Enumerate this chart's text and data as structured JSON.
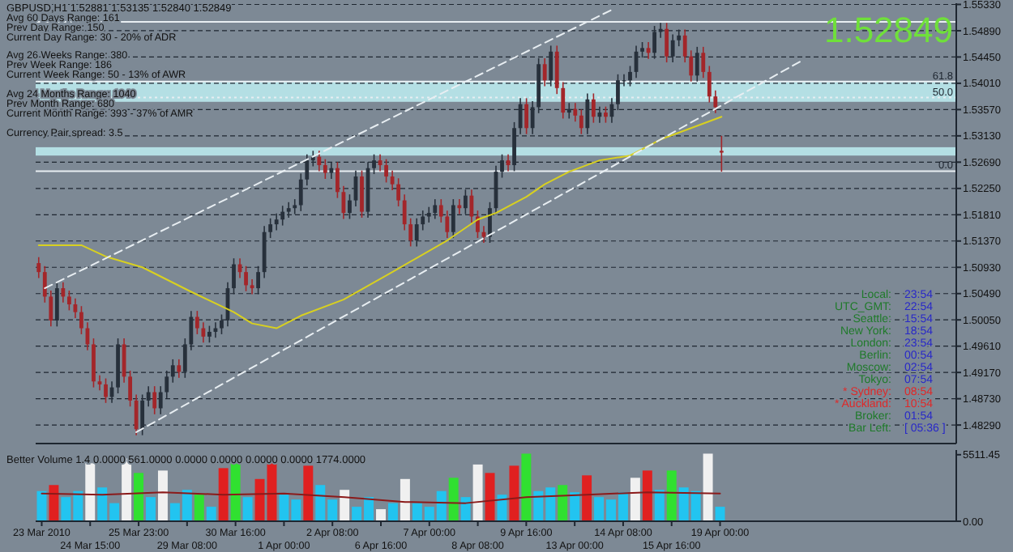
{
  "chart_data": [
    {
      "type": "candlestick",
      "title": "GBPUSD,H1  1.52881  1.53135  1.52840  1.52849",
      "categories": [
        null,
        null,
        null,
        null,
        null,
        null,
        null,
        null,
        null,
        null,
        null,
        null,
        null,
        null,
        null,
        null,
        null,
        null,
        null,
        null,
        null,
        null,
        null,
        null,
        null,
        null,
        null,
        null,
        null,
        null,
        null,
        null,
        null,
        null,
        null,
        null,
        null,
        null,
        null,
        null,
        null,
        null,
        null,
        null,
        null,
        null,
        null,
        null,
        null,
        null,
        null,
        null,
        null,
        null,
        null,
        null,
        null,
        null,
        null,
        null,
        null,
        null,
        null,
        null,
        null,
        null,
        null,
        null,
        null,
        null,
        null,
        null,
        null,
        null,
        null,
        null,
        null,
        null,
        null,
        null,
        null,
        null,
        null,
        null,
        null,
        null,
        null,
        null,
        null,
        null,
        null,
        null,
        null,
        null,
        null,
        null,
        null,
        null,
        null,
        null,
        null,
        null,
        null,
        null,
        null,
        null,
        null,
        null,
        null,
        null,
        null,
        null,
        null,
        null,
        null,
        null,
        null,
        null,
        null,
        null,
        null,
        null,
        null,
        null,
        null,
        null,
        null,
        null,
        null,
        null,
        null,
        null,
        null,
        null,
        null,
        null,
        null,
        null,
        null,
        null,
        null,
        null,
        null,
        null,
        null,
        null,
        null,
        null,
        null,
        null,
        null
      ],
      "ohlc": [
        [
          1.51,
          1.511,
          1.5075,
          1.5085
        ],
        [
          1.5085,
          1.5095,
          1.5034,
          1.5044
        ],
        [
          1.5044,
          1.5054,
          1.4994,
          1.5004
        ],
        [
          1.5004,
          1.5068,
          1.4994,
          1.5058
        ],
        [
          1.5058,
          1.5068,
          1.5034,
          1.5044
        ],
        [
          1.5044,
          1.5054,
          1.5021,
          1.5031
        ],
        [
          1.5031,
          1.5041,
          1.5008,
          1.5018
        ],
        [
          1.5018,
          1.5028,
          1.4981,
          1.4991
        ],
        [
          1.4991,
          1.5001,
          1.4954,
          1.4964
        ],
        [
          1.4964,
          1.4974,
          1.4892,
          1.4902
        ],
        [
          1.4902,
          1.4912,
          1.4887,
          1.4897
        ],
        [
          1.4897,
          1.4907,
          1.4866,
          1.4876
        ],
        [
          1.4876,
          1.4902,
          1.4866,
          1.4892
        ],
        [
          1.4892,
          1.4974,
          1.4882,
          1.4964
        ],
        [
          1.4964,
          1.4974,
          1.49,
          1.491
        ],
        [
          1.491,
          1.492,
          1.486,
          1.487
        ],
        [
          1.487,
          1.488,
          1.4812,
          1.4822
        ],
        [
          1.4822,
          1.488,
          1.4812,
          1.487
        ],
        [
          1.487,
          1.4894,
          1.486,
          1.4884
        ],
        [
          1.4884,
          1.4894,
          1.4847,
          1.4857
        ],
        [
          1.4857,
          1.4894,
          1.4847,
          1.4884
        ],
        [
          1.4884,
          1.492,
          1.4874,
          1.491
        ],
        [
          1.491,
          1.4939,
          1.49,
          1.4929
        ],
        [
          1.4929,
          1.4939,
          1.4908,
          1.4918
        ],
        [
          1.4918,
          1.4974,
          1.4908,
          1.4964
        ],
        [
          1.4964,
          1.502,
          1.4954,
          1.501
        ],
        [
          1.501,
          1.502,
          1.4981,
          1.4991
        ],
        [
          1.4991,
          1.5001,
          1.4967,
          1.4977
        ],
        [
          1.4977,
          1.4995,
          1.4967,
          1.4985
        ],
        [
          1.4985,
          1.5001,
          1.4975,
          1.4991
        ],
        [
          1.4991,
          1.5014,
          1.4981,
          1.5004
        ],
        [
          1.5004,
          1.5068,
          1.4994,
          1.5058
        ],
        [
          1.5058,
          1.5108,
          1.5048,
          1.5098
        ],
        [
          1.5098,
          1.5108,
          1.5075,
          1.5085
        ],
        [
          1.5085,
          1.5095,
          1.5053,
          1.5063
        ],
        [
          1.5063,
          1.5073,
          1.5048,
          1.5058
        ],
        [
          1.5058,
          1.5095,
          1.5048,
          1.5085
        ],
        [
          1.5085,
          1.5162,
          1.5075,
          1.5152
        ],
        [
          1.5152,
          1.5175,
          1.5142,
          1.5165
        ],
        [
          1.5165,
          1.5183,
          1.5155,
          1.5173
        ],
        [
          1.5173,
          1.5196,
          1.5163,
          1.5186
        ],
        [
          1.5186,
          1.5202,
          1.5176,
          1.5192
        ],
        [
          1.5192,
          1.5207,
          1.5182,
          1.5197
        ],
        [
          1.5197,
          1.525,
          1.5187,
          1.524
        ],
        [
          1.524,
          1.5282,
          1.523,
          1.5272
        ],
        [
          1.5272,
          1.5288,
          1.5262,
          1.5278
        ],
        [
          1.5278,
          1.5288,
          1.5254,
          1.5264
        ],
        [
          1.5264,
          1.5274,
          1.5241,
          1.5251
        ],
        [
          1.5251,
          1.5269,
          1.5241,
          1.5259
        ],
        [
          1.5259,
          1.5269,
          1.5209,
          1.5219
        ],
        [
          1.5219,
          1.5229,
          1.5174,
          1.5184
        ],
        [
          1.5184,
          1.5215,
          1.5174,
          1.5205
        ],
        [
          1.5205,
          1.5255,
          1.5195,
          1.5245
        ],
        [
          1.5245,
          1.5255,
          1.5176,
          1.5186
        ],
        [
          1.5186,
          1.5269,
          1.5176,
          1.5259
        ],
        [
          1.5259,
          1.5282,
          1.5249,
          1.5272
        ],
        [
          1.5272,
          1.5282,
          1.5254,
          1.5264
        ],
        [
          1.5264,
          1.5274,
          1.5235,
          1.5245
        ],
        [
          1.5245,
          1.5255,
          1.5222,
          1.5232
        ],
        [
          1.5232,
          1.5242,
          1.5195,
          1.5205
        ],
        [
          1.5205,
          1.5215,
          1.5155,
          1.5165
        ],
        [
          1.5165,
          1.5175,
          1.5128,
          1.5138
        ],
        [
          1.5138,
          1.5175,
          1.5128,
          1.5165
        ],
        [
          1.5165,
          1.5188,
          1.5155,
          1.5178
        ],
        [
          1.5178,
          1.5194,
          1.5168,
          1.5184
        ],
        [
          1.5184,
          1.5207,
          1.5174,
          1.5197
        ],
        [
          1.5197,
          1.5207,
          1.5168,
          1.5178
        ],
        [
          1.5178,
          1.5188,
          1.5142,
          1.5152
        ],
        [
          1.5152,
          1.5207,
          1.5142,
          1.5197
        ],
        [
          1.5197,
          1.5207,
          1.5182,
          1.5192
        ],
        [
          1.5192,
          1.5223,
          1.5182,
          1.5213
        ],
        [
          1.5213,
          1.5223,
          1.5168,
          1.5178
        ],
        [
          1.5178,
          1.5188,
          1.5142,
          1.5152
        ],
        [
          1.5152,
          1.5162,
          1.5134,
          1.5144
        ],
        [
          1.5144,
          1.5202,
          1.5134,
          1.5192
        ],
        [
          1.5192,
          1.5263,
          1.5182,
          1.5253
        ],
        [
          1.5253,
          1.5282,
          1.5243,
          1.5272
        ],
        [
          1.5272,
          1.5282,
          1.5254,
          1.5264
        ],
        [
          1.5264,
          1.5336,
          1.5254,
          1.5326
        ],
        [
          1.5326,
          1.5376,
          1.5316,
          1.5366
        ],
        [
          1.5366,
          1.5376,
          1.5316,
          1.5326
        ],
        [
          1.5326,
          1.5371,
          1.5316,
          1.5361
        ],
        [
          1.5361,
          1.5443,
          1.5351,
          1.5433
        ],
        [
          1.5433,
          1.5443,
          1.5396,
          1.5406
        ],
        [
          1.5406,
          1.5464,
          1.5396,
          1.5454
        ],
        [
          1.5454,
          1.5464,
          1.5383,
          1.5393
        ],
        [
          1.5393,
          1.5403,
          1.5342,
          1.5352
        ],
        [
          1.5352,
          1.5368,
          1.5342,
          1.5358
        ],
        [
          1.5358,
          1.5368,
          1.5337,
          1.5347
        ],
        [
          1.5347,
          1.5357,
          1.5316,
          1.5326
        ],
        [
          1.5326,
          1.5384,
          1.5316,
          1.5374
        ],
        [
          1.5374,
          1.5384,
          1.5335,
          1.5345
        ],
        [
          1.5345,
          1.5362,
          1.5335,
          1.5352
        ],
        [
          1.5352,
          1.5362,
          1.5335,
          1.5345
        ],
        [
          1.5345,
          1.5376,
          1.5335,
          1.5366
        ],
        [
          1.5366,
          1.5416,
          1.5356,
          1.5406
        ],
        [
          1.5406,
          1.5416,
          1.5396,
          1.5406
        ],
        [
          1.5406,
          1.543,
          1.5396,
          1.542
        ],
        [
          1.542,
          1.5464,
          1.541,
          1.5454
        ],
        [
          1.5454,
          1.547,
          1.5444,
          1.546
        ],
        [
          1.546,
          1.547,
          1.5442,
          1.5452
        ],
        [
          1.5452,
          1.5497,
          1.5442,
          1.5487
        ],
        [
          1.5487,
          1.5502,
          1.5477,
          1.5492
        ],
        [
          1.5492,
          1.5502,
          1.5436,
          1.5446
        ],
        [
          1.5446,
          1.5483,
          1.5436,
          1.5473
        ],
        [
          1.5473,
          1.5491,
          1.5463,
          1.5481
        ],
        [
          1.5481,
          1.5491,
          1.5436,
          1.5446
        ],
        [
          1.5446,
          1.5456,
          1.5404,
          1.5414
        ],
        [
          1.5414,
          1.5462,
          1.5404,
          1.5452
        ],
        [
          1.5452,
          1.5462,
          1.541,
          1.542
        ],
        [
          1.542,
          1.543,
          1.5369,
          1.5379
        ],
        [
          1.5379,
          1.5389,
          1.5351,
          1.5361
        ],
        [
          1.5288,
          1.5313,
          1.5253,
          1.5285
        ],
        null,
        null,
        null,
        null,
        null,
        null,
        null,
        null,
        null,
        null,
        null,
        null,
        null,
        null,
        null,
        null,
        null,
        null,
        null,
        null,
        null,
        null,
        null,
        null,
        null,
        null,
        null,
        null,
        null,
        null,
        null,
        null,
        null,
        null,
        null,
        null,
        null,
        null
      ],
      "series": [
        {
          "type": "line",
          "color": "#d8d020",
          "values": [
            1.513,
            null,
            null,
            null,
            null,
            null,
            null,
            1.513,
            null,
            null,
            null,
            1.5111,
            null,
            null,
            null,
            null,
            null,
            1.5093,
            null,
            null,
            null,
            null,
            null,
            null,
            null,
            1.5052,
            null,
            null,
            null,
            null,
            null,
            null,
            1.5018,
            null,
            null,
            1.4999,
            null,
            null,
            null,
            1.4991,
            null,
            null,
            null,
            1.5012,
            null,
            null,
            null,
            null,
            null,
            null,
            1.5039,
            null,
            null,
            null,
            null,
            null,
            null,
            null,
            1.5085,
            null,
            null,
            null,
            null,
            null,
            null,
            null,
            null,
            1.5138,
            null,
            null,
            null,
            null,
            1.5173,
            null,
            null,
            1.5184,
            null,
            null,
            null,
            null,
            1.5211,
            null,
            null,
            1.5232,
            null,
            null,
            null,
            1.5253,
            null,
            null,
            null,
            null,
            1.5272,
            null,
            null,
            null,
            null,
            1.528,
            null,
            null,
            null,
            null,
            1.5307,
            null,
            null,
            null,
            null,
            1.5326,
            null,
            null,
            null,
            null,
            1.5345,
            null,
            null,
            null,
            null,
            null,
            null,
            null,
            null,
            null,
            null,
            null,
            null,
            null,
            null,
            null,
            null,
            null,
            null,
            null,
            null,
            null,
            null,
            null,
            null,
            null,
            null,
            null,
            null,
            null,
            null,
            null,
            null,
            null,
            null,
            null,
            null,
            null,
            null
          ]
        },
        {
          "type": "line",
          "color": "#e8eef2",
          "line_style": "dashed",
          "values": [
            null,
            1.5058,
            null,
            null,
            null,
            null,
            null,
            null,
            null,
            null,
            null,
            null,
            null,
            null,
            null,
            null,
            null,
            null,
            null,
            null,
            null,
            null,
            null,
            null,
            null,
            null,
            null,
            null,
            null,
            null,
            null,
            null,
            null,
            null,
            null,
            null,
            null,
            null,
            null,
            null,
            null,
            null,
            null,
            null,
            null,
            null,
            null,
            null,
            null,
            null,
            null,
            null,
            null,
            null,
            null,
            null,
            null,
            null,
            null,
            null,
            null,
            null,
            null,
            null,
            null,
            null,
            null,
            null,
            null,
            null,
            null,
            null,
            null,
            null,
            null,
            null,
            null,
            null,
            null,
            null,
            null,
            null,
            null,
            null,
            null,
            null,
            null,
            null,
            null,
            null,
            null,
            null,
            null,
            null,
            1.5524,
            null,
            null,
            null,
            null,
            null,
            null,
            null,
            null,
            null,
            null,
            null,
            null,
            null,
            null,
            null,
            null,
            null,
            null,
            null,
            null,
            null,
            null,
            null,
            null,
            null,
            null,
            null,
            null,
            null,
            null,
            null,
            null,
            null,
            null,
            null,
            null,
            null,
            null,
            null,
            null,
            null,
            null,
            null,
            null,
            null,
            null,
            null,
            null,
            null,
            null,
            null,
            null,
            null,
            null,
            null,
            null
          ]
        },
        {
          "type": "line",
          "color": "#e8eef2",
          "line_style": "dashed",
          "values": [
            null,
            null,
            null,
            null,
            null,
            null,
            null,
            null,
            null,
            null,
            null,
            null,
            null,
            null,
            null,
            null,
            1.4817,
            null,
            null,
            null,
            null,
            null,
            null,
            null,
            null,
            null,
            null,
            null,
            null,
            null,
            null,
            null,
            null,
            null,
            null,
            null,
            null,
            null,
            null,
            null,
            null,
            null,
            null,
            null,
            null,
            null,
            null,
            null,
            null,
            null,
            null,
            null,
            null,
            null,
            null,
            null,
            null,
            null,
            null,
            null,
            null,
            null,
            null,
            null,
            null,
            null,
            null,
            null,
            null,
            null,
            null,
            null,
            null,
            null,
            null,
            null,
            null,
            null,
            null,
            null,
            null,
            null,
            null,
            null,
            null,
            null,
            null,
            null,
            null,
            null,
            null,
            null,
            null,
            null,
            null,
            null,
            null,
            null,
            null,
            null,
            null,
            null,
            null,
            null,
            null,
            null,
            null,
            null,
            null,
            null,
            null,
            null,
            null,
            null,
            null,
            null,
            null,
            null,
            null,
            null,
            null,
            null,
            null,
            null,
            null,
            1.5438,
            null,
            null,
            null,
            null,
            null,
            null,
            null,
            null,
            null,
            null,
            null,
            null,
            null,
            null,
            null,
            null,
            null,
            null,
            null,
            null,
            null,
            null,
            null,
            null,
            null
          ]
        }
      ],
      "ylim": [
        1.4798,
        1.5535
      ],
      "yticks": [
        {
          "value": 1.4829,
          "label": "1.48290"
        },
        {
          "value": 1.4873,
          "label": "1.48730"
        },
        {
          "value": 1.4917,
          "label": "1.49170"
        },
        {
          "value": 1.4961,
          "label": "1.49610"
        },
        {
          "value": 1.5005,
          "label": "1.50050"
        },
        {
          "value": 1.5049,
          "label": "1.50490"
        },
        {
          "value": 1.5093,
          "label": "1.50930"
        },
        {
          "value": 1.5137,
          "label": "1.51370"
        },
        {
          "value": 1.5181,
          "label": "1.51810"
        },
        {
          "value": 1.5225,
          "label": "1.52250"
        },
        {
          "value": 1.5269,
          "label": "1.52690"
        },
        {
          "value": 1.5313,
          "label": "1.53130"
        },
        {
          "value": 1.5357,
          "label": "1.53570"
        },
        {
          "value": 1.5401,
          "label": "1.54010"
        },
        {
          "value": 1.5445,
          "label": "1.54450"
        },
        {
          "value": 1.5489,
          "label": "1.54890"
        },
        {
          "value": 1.5533,
          "label": "1.55330"
        }
      ],
      "tick_labels": "y",
      "grid": "y",
      "ref_lines": [
        {
          "axis": "y",
          "value": 1.5504,
          "color": "#e8eef2"
        },
        {
          "axis": "y",
          "value": 1.5404,
          "color": "#e8eef2"
        },
        {
          "axis": "y",
          "value": 1.5377,
          "color": "#e8eef2",
          "line_style": "dotted"
        },
        {
          "axis": "y",
          "value": 1.5254,
          "color": "#e8eef2"
        }
      ],
      "bands": [
        {
          "axis": "y",
          "from": 1.528,
          "to": 1.5294,
          "color": "#bdeef2"
        },
        {
          "axis": "y",
          "from": 1.537,
          "to": 1.5404,
          "color": "#bdeef2"
        }
      ],
      "annotations": [
        "Avg 60 Days Range: 161",
        "Prev Day Range: 150",
        "Current Day Range: 30 - 20% of ADR",
        "Avg 26 Weeks Range: 380",
        "Prev Week Range: 186",
        "Current Week Range: 50 - 13% of AWR",
        "Avg 24 Months Range: 1040",
        "Prev Month Range: 680",
        "Current Month Range: 393 - 37% of AMR",
        "Currency Pair spread: 3.5",
        "Local:",
        "23:54",
        "UTC_GMT:",
        "22:54",
        "Seattle:",
        "15:54",
        "New York:",
        "18:54",
        "London:",
        "23:54",
        "Berlin:",
        "00:54",
        "Moscow:",
        "02:54",
        "Tokyo:",
        "07:54",
        "* Sydney:",
        "08:54",
        "* Auckland:",
        "10:54",
        "Broker:",
        "01:54",
        "Bar Left:",
        "[ 05:36 ]",
        "1.52849",
        {
          "text": "61.8",
          "y": 1.5404
        },
        {
          "text": "50.0",
          "y": 1.5377
        },
        {
          "text": "0.0",
          "y": 1.5254
        }
      ]
    },
    {
      "type": "bar",
      "title": "Better Volume 1.4 0.0000 561.0000 0.0000 0.0000 0.0000 0.0000 1774.0000",
      "categories": [
        "23 Mar 2010",
        null,
        null,
        null,
        "24 Mar 15:00",
        null,
        null,
        null,
        "25 Mar 23:00",
        null,
        null,
        null,
        "29 Mar 08:00",
        null,
        null,
        null,
        "30 Mar 16:00",
        null,
        null,
        null,
        "1 Apr 00:00",
        null,
        null,
        null,
        "2 Apr 08:00",
        null,
        null,
        null,
        "6 Apr 16:00",
        null,
        null,
        null,
        "7 Apr 00:00",
        null,
        null,
        null,
        "8 Apr 08:00",
        null,
        null,
        null,
        "9 Apr 16:00",
        null,
        null,
        null,
        "13 Apr 00:00",
        null,
        null,
        null,
        "14 Apr 08:00",
        null,
        null,
        null,
        "15 Apr 16:00",
        null,
        null,
        null,
        "19 Apr 00:00",
        null,
        null,
        null,
        null,
        null,
        null,
        null,
        null,
        null,
        null,
        null,
        null,
        null,
        null,
        null,
        null,
        null,
        null,
        null
      ],
      "values": [
        2500,
        3000,
        2000,
        2500,
        4800,
        2800,
        1500,
        5200,
        4000,
        2000,
        4200,
        1500,
        2600,
        2200,
        1200,
        4400,
        5000,
        2000,
        3500,
        5000,
        2200,
        1800,
        4600,
        3000,
        1800,
        2600,
        1200,
        2000,
        1000,
        1500,
        3500,
        1500,
        1200,
        2500,
        3600,
        2000,
        4700,
        4000,
        2200,
        4600,
        5600,
        2500,
        2800,
        3000,
        2400,
        3800,
        2000,
        1800,
        2400,
        3600,
        4200,
        2600,
        4200,
        2800,
        2500,
        5600,
        1200,
        null,
        null,
        null,
        null,
        null,
        null,
        null,
        null,
        null,
        null,
        null,
        null,
        null,
        null,
        null,
        null,
        null,
        null,
        null
      ],
      "colors": [
        "#22c4f0",
        "#e02020",
        "#22c4f0",
        "#22c4f0",
        "#f0f0f0",
        "#22c4f0",
        "#22c4f0",
        "#f0f0f0",
        "#30e030",
        "#22c4f0",
        "#f0f0f0",
        "#22c4f0",
        "#22c4f0",
        "#30e030",
        "#22c4f0",
        "#e02020",
        "#30e030",
        "#22c4f0",
        "#e02020",
        "#e02020",
        "#22c4f0",
        "#22c4f0",
        "#e02020",
        "#22c4f0",
        "#22c4f0",
        "#f0f0f0",
        "#22c4f0",
        "#22c4f0",
        "#f0f0f0",
        "#22c4f0",
        "#f0f0f0",
        "#22c4f0",
        "#22c4f0",
        "#22c4f0",
        "#30e030",
        "#22c4f0",
        "#f0f0f0",
        "#e02020",
        "#22c4f0",
        "#e02020",
        "#30e030",
        "#22c4f0",
        "#22c4f0",
        "#30e030",
        "#22c4f0",
        "#e02020",
        "#22c4f0",
        "#22c4f0",
        "#22c4f0",
        "#f0f0f0",
        "#e02020",
        "#22c4f0",
        "#30e030",
        "#22c4f0",
        "#22c4f0",
        "#f0f0f0",
        "#22c4f0",
        null,
        null,
        null,
        null,
        null,
        null,
        null,
        null,
        null,
        null,
        null,
        null,
        null,
        null,
        null,
        null,
        null,
        null,
        null
      ],
      "series": [
        {
          "type": "line",
          "color": "#8b1a1a",
          "values": [
            2300,
            null,
            null,
            null,
            null,
            2200,
            null,
            null,
            null,
            null,
            2400,
            null,
            null,
            null,
            null,
            2200,
            null,
            null,
            null,
            null,
            2300,
            null,
            null,
            null,
            null,
            2000,
            null,
            null,
            null,
            null,
            1600,
            null,
            null,
            null,
            null,
            1500,
            null,
            null,
            null,
            null,
            2000,
            null,
            null,
            null,
            null,
            2200,
            null,
            null,
            null,
            null,
            2400,
            null,
            null,
            null,
            null,
            null,
            2300,
            null,
            null,
            null,
            null,
            null,
            null,
            null,
            null,
            null,
            null,
            null,
            null,
            null,
            null,
            null,
            null,
            null,
            null,
            null
          ]
        }
      ],
      "ylim": [
        0,
        5900
      ],
      "yticks": [
        {
          "value": 5511.45,
          "label": "5511.45"
        },
        {
          "value": 0,
          "label": "0.00"
        }
      ]
    }
  ]
}
